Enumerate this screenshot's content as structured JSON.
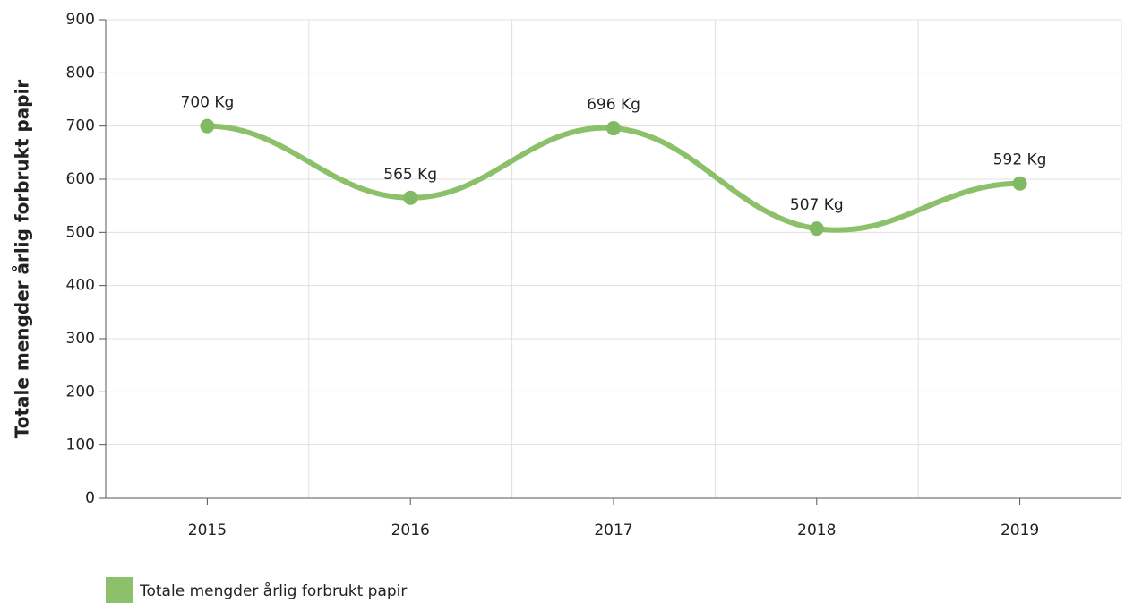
{
  "chart_data": {
    "type": "line",
    "y_axis_label": "Totale mengder årlig forbrukt papir",
    "categories": [
      "2015",
      "2016",
      "2017",
      "2018",
      "2019"
    ],
    "series": [
      {
        "name": "Totale mengder årlig forbrukt papir",
        "color": "#8cc06a",
        "values": [
          700,
          565,
          696,
          507,
          592
        ],
        "value_labels": [
          "700 Kg",
          "565 Kg",
          "696 Kg",
          "507 Kg",
          "592 Kg"
        ]
      }
    ],
    "ylim": [
      0,
      900
    ],
    "yticks": [
      0,
      100,
      200,
      300,
      400,
      500,
      600,
      700,
      800,
      900
    ],
    "grid": true,
    "smooth": true,
    "legend": "bottom-left"
  }
}
